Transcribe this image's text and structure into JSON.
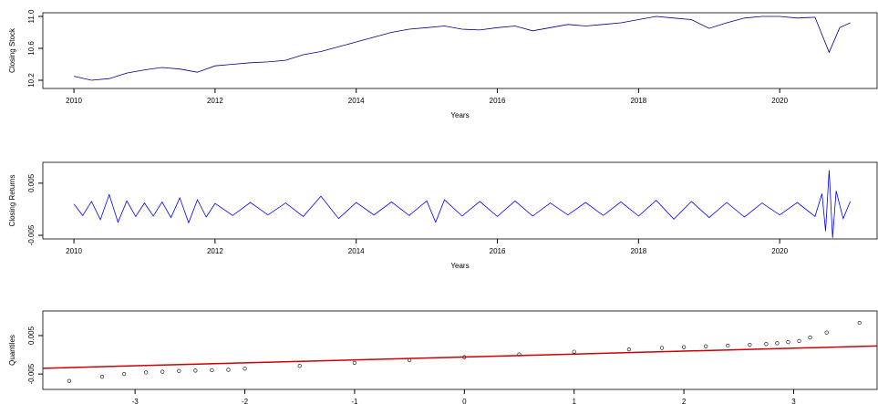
{
  "chart_data": [
    {
      "type": "line",
      "y_label": "Closing Stock",
      "x_label": "Years",
      "xlim": [
        2009.56,
        2021.38
      ],
      "ylim": [
        10.097,
        11.046
      ],
      "xticks": [
        2010,
        2012,
        2014,
        2016,
        2018,
        2020
      ],
      "yticks": [
        10.2,
        10.6,
        {
          "value": 11,
          "label": "11.0"
        }
      ],
      "series": [
        {
          "color": "#00007f",
          "x": [
            2010.0,
            2010.25,
            2010.5,
            2010.75,
            2011.0,
            2011.25,
            2011.5,
            2011.75,
            2012.0,
            2012.25,
            2012.5,
            2012.75,
            2013.0,
            2013.25,
            2013.5,
            2013.75,
            2014.0,
            2014.25,
            2014.5,
            2014.75,
            2015.0,
            2015.25,
            2015.5,
            2015.75,
            2016.0,
            2016.25,
            2016.5,
            2016.75,
            2017.0,
            2017.25,
            2017.5,
            2017.75,
            2018.0,
            2018.25,
            2018.5,
            2018.75,
            2019.0,
            2019.25,
            2019.5,
            2019.75,
            2020.0,
            2020.25,
            2020.5,
            2020.7,
            2020.85,
            2021.0
          ],
          "values": [
            10.25,
            10.2,
            10.22,
            10.29,
            10.33,
            10.36,
            10.34,
            10.3,
            10.38,
            10.4,
            10.42,
            10.43,
            10.45,
            10.52,
            10.56,
            10.62,
            10.68,
            10.74,
            10.8,
            10.84,
            10.86,
            10.88,
            10.84,
            10.83,
            10.86,
            10.88,
            10.82,
            10.86,
            10.9,
            10.88,
            10.9,
            10.92,
            10.96,
            11.0,
            10.98,
            10.96,
            10.85,
            10.92,
            10.98,
            11.0,
            11.0,
            10.98,
            10.99,
            10.55,
            10.86,
            10.92
          ]
        }
      ]
    },
    {
      "type": "line",
      "y_label": "Closing Returns",
      "x_label": "Years",
      "xlim": [
        2009.56,
        2021.38
      ],
      "ylim": [
        -0.0057,
        0.009
      ],
      "xticks": [
        2010,
        2012,
        2014,
        2016,
        2018,
        2020
      ],
      "yticks": [
        -0.005,
        0.005
      ],
      "series": [
        {
          "color": "#0000ff",
          "x": [
            2010.0,
            2010.125,
            2010.25,
            2010.375,
            2010.5,
            2010.625,
            2010.75,
            2010.875,
            2011.0,
            2011.125,
            2011.25,
            2011.375,
            2011.5,
            2011.625,
            2011.75,
            2011.875,
            2012.0,
            2012.25,
            2012.5,
            2012.75,
            2013.0,
            2013.25,
            2013.5,
            2013.75,
            2014.0,
            2014.25,
            2014.5,
            2014.75,
            2015.0,
            2015.125,
            2015.25,
            2015.5,
            2015.75,
            2016.0,
            2016.25,
            2016.5,
            2016.75,
            2017.0,
            2017.25,
            2017.5,
            2017.75,
            2018.0,
            2018.25,
            2018.5,
            2018.75,
            2019.0,
            2019.25,
            2019.5,
            2019.75,
            2020.0,
            2020.25,
            2020.5,
            2020.6,
            2020.65,
            2020.7,
            2020.75,
            2020.8,
            2020.9,
            2021.0
          ],
          "values": [
            0.001,
            -0.0012,
            0.0015,
            -0.002,
            0.0028,
            -0.0025,
            0.0016,
            -0.0014,
            0.0012,
            -0.0013,
            0.0014,
            -0.0016,
            0.0022,
            -0.0026,
            0.0018,
            -0.0015,
            0.0011,
            -0.0012,
            0.0013,
            -0.0011,
            0.0012,
            -0.0014,
            0.0025,
            -0.0018,
            0.0013,
            -0.0011,
            0.0014,
            -0.0012,
            0.0016,
            -0.0025,
            0.0018,
            -0.0013,
            0.0015,
            -0.0014,
            0.0016,
            -0.0013,
            0.0012,
            -0.0011,
            0.0013,
            -0.0012,
            0.0014,
            -0.0013,
            0.0017,
            -0.0019,
            0.0015,
            -0.0016,
            0.0013,
            -0.0015,
            0.0012,
            -0.0011,
            0.0013,
            -0.0014,
            0.003,
            -0.0042,
            0.0075,
            -0.0055,
            0.0035,
            -0.0018,
            0.0015
          ]
        }
      ]
    },
    {
      "type": "scatter",
      "y_label": "Quantiles",
      "xlim": [
        -3.84,
        3.76
      ],
      "ylim": [
        -0.009,
        0.0114
      ],
      "xticks": [
        -3,
        -2,
        -1,
        0,
        1,
        2,
        3
      ],
      "yticks": [
        -0.005,
        0.005
      ],
      "series": [
        {
          "color": "#000000",
          "x": [
            -3.6,
            -3.3,
            -3.1,
            -2.9,
            -2.75,
            -2.6,
            -2.45,
            -2.3,
            -2.15,
            -2.0,
            -1.5,
            -1.0,
            -0.5,
            0,
            0.5,
            1.0,
            1.5,
            1.8,
            2.0,
            2.2,
            2.4,
            2.6,
            2.75,
            2.85,
            2.95,
            3.05,
            3.15,
            3.3,
            3.6
          ],
          "values": [
            -0.0068,
            -0.0057,
            -0.005,
            -0.0046,
            -0.0044,
            -0.0042,
            -0.0041,
            -0.004,
            -0.0039,
            -0.0036,
            -0.0029,
            -0.0021,
            -0.0014,
            -0.0006,
            0.0001,
            0.0008,
            0.0014,
            0.0018,
            0.002,
            0.0022,
            0.0024,
            0.0026,
            0.0028,
            0.003,
            0.0033,
            0.0036,
            0.0045,
            0.0058,
            0.0083
          ]
        }
      ],
      "reference_line": {
        "color": "#cc0000",
        "x": [
          -3.84,
          3.76
        ],
        "values": [
          -0.0035,
          0.0023
        ]
      }
    }
  ]
}
